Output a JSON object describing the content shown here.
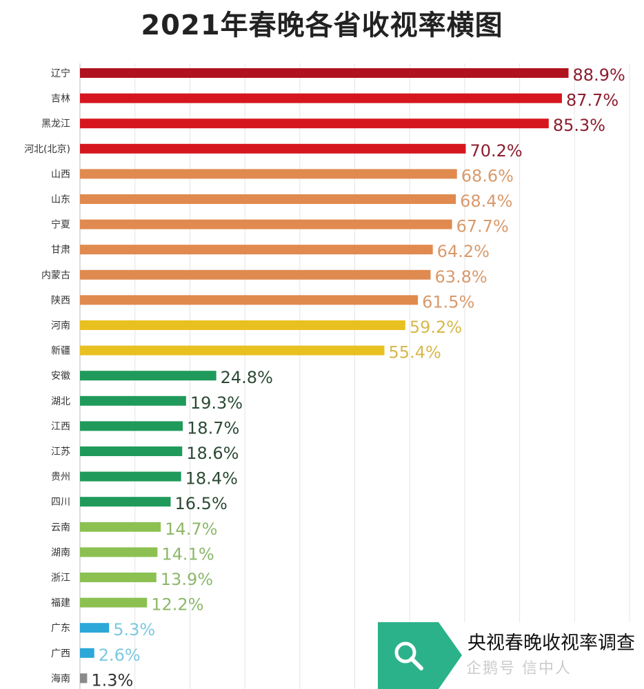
{
  "chart_data": {
    "type": "bar",
    "orientation": "horizontal",
    "title": "2021年春晚各省收视率横图",
    "categories": [
      "辽宁",
      "吉林",
      "黑龙江",
      "河北(北京)",
      "山西",
      "山东",
      "宁夏",
      "甘肃",
      "内蒙古",
      "陕西",
      "河南",
      "新疆",
      "安徽",
      "湖北",
      "江西",
      "江苏",
      "贵州",
      "四川",
      "云南",
      "湖南",
      "浙江",
      "福建",
      "广东",
      "广西",
      "海南"
    ],
    "values": [
      88.9,
      87.7,
      85.3,
      70.2,
      68.6,
      68.4,
      67.7,
      64.2,
      63.8,
      61.5,
      59.2,
      55.4,
      24.8,
      19.3,
      18.7,
      18.6,
      18.4,
      16.5,
      14.7,
      14.1,
      13.9,
      12.2,
      5.3,
      2.6,
      1.3
    ],
    "value_labels": [
      "88.9%",
      "87.7%",
      "85.3%",
      "70.2%",
      "68.6%",
      "68.4%",
      "67.7%",
      "64.2%",
      "63.8%",
      "61.5%",
      "59.2%",
      "55.4%",
      "24.8%",
      "19.3%",
      "18.7%",
      "18.6%",
      "18.4%",
      "16.5%",
      "14.7%",
      "14.1%",
      "13.9%",
      "12.2%",
      "5.3%",
      "2.6%",
      "1.3%"
    ],
    "bar_colors": [
      "#b0121f",
      "#d6161e",
      "#d6161e",
      "#d6161e",
      "#e08a4f",
      "#e08a4f",
      "#e08a4f",
      "#e08a4f",
      "#e08a4f",
      "#e08a4f",
      "#e8c020",
      "#e8c020",
      "#1f9a5a",
      "#1f9a5a",
      "#1f9a5a",
      "#1f9a5a",
      "#1f9a5a",
      "#1f9a5a",
      "#8cc152",
      "#8cc152",
      "#8cc152",
      "#8cc152",
      "#2ba8d8",
      "#2ba8d8",
      "#8a8a8a"
    ],
    "label_colors": [
      "#8c1d2f",
      "#8c1d2f",
      "#8c1d2f",
      "#8c1d2f",
      "#d99a6c",
      "#d99a6c",
      "#d99a6c",
      "#d99a6c",
      "#d99a6c",
      "#d99a6c",
      "#d6b84a",
      "#d6b84a",
      "#2c4a35",
      "#2c4a35",
      "#2c4a35",
      "#2c4a35",
      "#2c4a35",
      "#2c4a35",
      "#8cb86a",
      "#8cb86a",
      "#8cb86a",
      "#8cb86a",
      "#7cc8e0",
      "#7cc8e0",
      "#333333"
    ],
    "xlim": [
      0,
      100
    ],
    "grid": true
  },
  "badge": {
    "text": "央视春晚收视率调查",
    "icon": "search-icon",
    "accent_color": "#2bb28a"
  },
  "watermark": "企鹅号 信中人"
}
